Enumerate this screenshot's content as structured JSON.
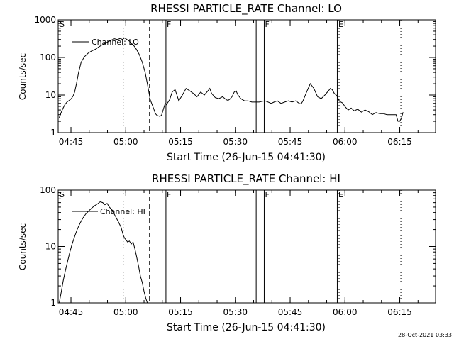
{
  "timestamp": "28-Oct-2021 03:33",
  "time_ticks": [
    {
      "label": "04:45",
      "min": 3.5
    },
    {
      "label": "05:00",
      "min": 18.5
    },
    {
      "label": "05:15",
      "min": 33.5
    },
    {
      "label": "05:30",
      "min": 48.5
    },
    {
      "label": "05:45",
      "min": 63.5
    },
    {
      "label": "06:00",
      "min": 78.5
    },
    {
      "label": "06:15",
      "min": 93.5
    }
  ],
  "x_range_min": [
    0,
    103.3
  ],
  "markers": [
    {
      "type": "dotted",
      "min": 17.8
    },
    {
      "type": "dashed",
      "min": 25.0
    },
    {
      "type": "solid",
      "min": 29.5
    },
    {
      "type": "solid",
      "min": 54.2
    },
    {
      "type": "solid",
      "min": 56.4
    },
    {
      "type": "solid",
      "min": 76.4
    },
    {
      "type": "dotted",
      "min": 76.9
    },
    {
      "type": "dotted",
      "min": 93.8
    }
  ],
  "chart_data": [
    {
      "type": "line",
      "title": "RHESSI PARTICLE_RATE Channel: LO",
      "xlabel": "Start Time (26-Jun-15 04:41:30)",
      "ylabel": "Counts/sec",
      "yscale": "log",
      "ylim": [
        1,
        1000
      ],
      "y_ticks": [
        "1",
        "10",
        "100",
        "1000"
      ],
      "legend": "Channel: LO",
      "flags": [
        {
          "label": "S",
          "min": 0.4
        },
        {
          "label": "F",
          "min": 29.7
        },
        {
          "label": "F",
          "min": 56.6
        },
        {
          "label": "E",
          "min": 76.7
        }
      ],
      "series": {
        "name": "Channel: LO",
        "t": [
          0.3,
          0.7,
          1.2,
          1.8,
          2.4,
          3.0,
          3.6,
          4.1,
          4.5,
          5.0,
          5.6,
          6.3,
          7.2,
          8.2,
          9.2,
          10.2,
          11.1,
          12.0,
          12.9,
          13.8,
          14.6,
          15.4,
          16.2,
          17.0,
          17.6,
          18.2,
          18.8,
          19.5,
          20.2,
          20.8,
          21.5,
          22.2,
          23.0,
          23.8,
          24.4,
          25.2,
          26.2,
          26.6,
          27.0,
          27.4,
          27.8,
          28.3,
          28.9,
          29.3,
          29.6,
          30.5,
          31.2,
          32.0,
          32.5,
          33.0,
          34.0,
          35.0,
          36.0,
          37.0,
          38.0,
          39.0,
          40.0,
          41.0,
          41.5,
          42.0,
          43.0,
          44.0,
          45.0,
          46.0,
          46.5,
          47.0,
          47.6,
          48.2,
          48.7,
          49.2,
          50.0,
          51.0,
          52.0,
          53.0,
          54.0,
          55.0,
          55.8,
          56.6,
          57.5,
          58.3,
          59.1,
          60.0,
          61.0,
          62.0,
          63.0,
          64.0,
          65.0,
          66.0,
          66.5,
          67.0,
          68.0,
          69.0,
          70.0,
          71.0,
          72.0,
          73.0,
          74.0,
          74.5,
          75.0,
          75.6,
          76.1,
          76.4,
          77.0,
          77.8,
          78.6,
          79.4,
          80.2,
          81.0,
          82.0,
          83.0,
          84.0,
          85.0,
          86.0,
          87.0,
          88.0,
          89.0,
          90.0,
          91.0,
          92.0,
          92.5,
          93.0,
          93.5,
          94.0,
          94.4
        ],
        "v": [
          2.5,
          3.2,
          4.2,
          5.5,
          6.5,
          7.2,
          8.0,
          9.5,
          12,
          20,
          40,
          75,
          105,
          130,
          150,
          165,
          190,
          215,
          240,
          265,
          290,
          315,
          300,
          320,
          300,
          330,
          300,
          270,
          230,
          200,
          160,
          120,
          75,
          40,
          20,
          7.5,
          4.2,
          3.2,
          2.9,
          2.8,
          2.7,
          2.9,
          4.5,
          6.0,
          5.5,
          7.5,
          12,
          14,
          10,
          7,
          10,
          15,
          13,
          11,
          9,
          12,
          10,
          13,
          15,
          11,
          8.5,
          8,
          9,
          7.5,
          7.2,
          7.8,
          9,
          12,
          13,
          10,
          8,
          7,
          7,
          6.5,
          6.5,
          6.5,
          6.8,
          7,
          6.5,
          6,
          6.5,
          7,
          6,
          6.5,
          7,
          6.5,
          7,
          6,
          5.8,
          7,
          12,
          20,
          15,
          9,
          8,
          10,
          13,
          15,
          14,
          11,
          10,
          9,
          6.8,
          6.2,
          4.8,
          4.0,
          4.5,
          3.8,
          4.2,
          3.5,
          4.0,
          3.6,
          3.0,
          3.4,
          3.2,
          3.2,
          3.0,
          3.0,
          3.0,
          3.0,
          2.0,
          2.0,
          2.5,
          3.5,
          3.8
        ]
      }
    },
    {
      "type": "line",
      "title": "RHESSI PARTICLE_RATE Channel: HI",
      "xlabel": "Start Time (26-Jun-15 04:41:30)",
      "ylabel": "Counts/sec",
      "yscale": "log",
      "ylim": [
        1,
        100
      ],
      "y_ticks": [
        "1",
        "10",
        "100"
      ],
      "legend": "Channel: HI",
      "flags": [
        {
          "label": "S",
          "min": 0.4
        },
        {
          "label": "F",
          "min": 29.7
        },
        {
          "label": "F",
          "min": 56.6
        },
        {
          "label": "E",
          "min": 76.7
        }
      ],
      "series": {
        "name": "Channel: HI",
        "t": [
          0.3,
          0.8,
          1.4,
          2.0,
          2.6,
          3.2,
          3.8,
          4.5,
          5.2,
          6.0,
          6.8,
          7.6,
          8.4,
          9.2,
          10.0,
          10.8,
          11.5,
          12.2,
          12.8,
          13.4,
          14.0,
          14.8,
          15.6,
          16.4,
          17.2,
          17.8,
          18.2,
          18.6,
          19.0,
          19.5,
          20.0,
          20.5,
          21.0,
          21.5,
          22.0,
          22.5,
          23.0,
          23.5,
          24.0,
          24.4
        ],
        "v": [
          1.0,
          1.5,
          2.5,
          3.8,
          5.5,
          8.0,
          11,
          15,
          20,
          26,
          32,
          38,
          43,
          48,
          53,
          57,
          62,
          60,
          55,
          58,
          50,
          44,
          35,
          28,
          22,
          16,
          14,
          13,
          12,
          12.5,
          11,
          12,
          9,
          6.5,
          4.5,
          3.0,
          2.3,
          1.6,
          1.2,
          1.0
        ]
      }
    }
  ]
}
